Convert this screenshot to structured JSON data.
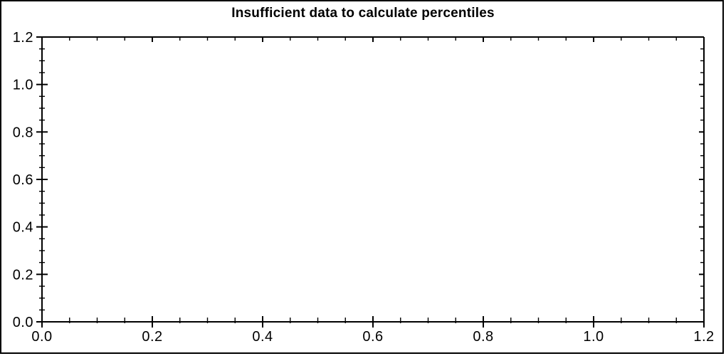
{
  "window": {
    "background": "#ffffff",
    "border_color": "#000000"
  },
  "chart_data": {
    "type": "scatter",
    "title": "Insufficient data to calculate percentiles",
    "series": [],
    "x_axis": {
      "min": 0.0,
      "max": 1.2,
      "major_step": 0.2,
      "minor_step": 0.05,
      "tick_labels": [
        "0.0",
        "0.2",
        "0.4",
        "0.6",
        "0.8",
        "1.0",
        "1.2"
      ],
      "label": ""
    },
    "y_axis": {
      "min": 0.0,
      "max": 1.2,
      "major_step": 0.2,
      "minor_step": 0.05,
      "tick_labels": [
        "0.0",
        "0.2",
        "0.4",
        "0.6",
        "0.8",
        "1.0",
        "1.2"
      ],
      "label": ""
    },
    "grid": false,
    "frame": "box",
    "legend_position": "none",
    "title_color": "#000000",
    "axis_color": "#000000",
    "tick_label_color": "#000000",
    "plot_background": "#ffffff"
  }
}
